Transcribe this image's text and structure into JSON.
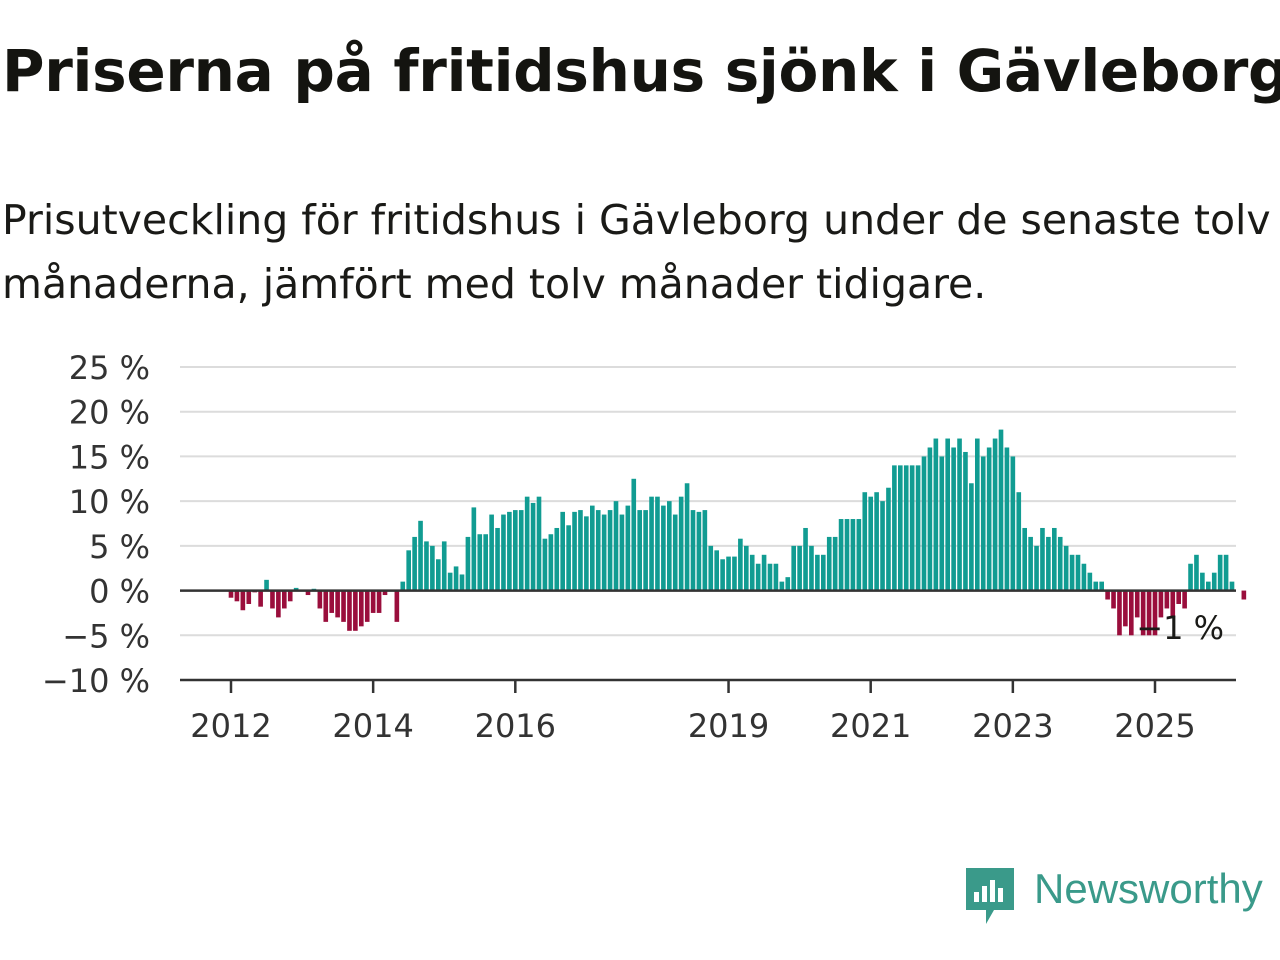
{
  "header": {
    "title": "Priserna på fritidshus sjönk i Gävleborg",
    "subtitle": "Prisutveckling för fritidshus i Gävleborg under de senaste tolv månaderna, jämfört med tolv månader tidigare."
  },
  "brand": {
    "name": "Newsworthy",
    "color": "#3a9a8a",
    "icon": "newsworthy-logo-icon"
  },
  "chart_data": {
    "type": "bar",
    "x_start": "2011-01",
    "period": "monthly",
    "ylim": [
      -10,
      25
    ],
    "yticks": [
      25,
      20,
      15,
      10,
      5,
      0,
      -5,
      -10
    ],
    "ytick_labels": [
      "25 %",
      "20 %",
      "15 %",
      "10 %",
      "5 %",
      "0 %",
      "−5 %",
      "−10 %"
    ],
    "xticks": [
      "2012",
      "2014",
      "2016",
      "2019",
      "2021",
      "2023",
      "2025"
    ],
    "grid": true,
    "colors": {
      "positive": "#119c92",
      "negative": "#9a0e3c"
    },
    "last_value_label": "−1 %",
    "values": [
      0,
      0,
      0,
      0,
      0,
      0,
      0,
      0,
      0,
      0,
      0,
      0,
      -0.8,
      -1.2,
      -2.2,
      -1.5,
      -0.2,
      -1.8,
      1.2,
      -2.0,
      -3.0,
      -2.0,
      -1.2,
      0.3,
      0,
      -0.5,
      0.2,
      -2.0,
      -3.5,
      -2.5,
      -3.0,
      -3.5,
      -4.5,
      -4.5,
      -4.0,
      -3.5,
      -2.5,
      -2.5,
      -0.5,
      0,
      -3.5,
      1.0,
      4.5,
      6.0,
      7.8,
      5.5,
      5.0,
      3.5,
      5.5,
      2.0,
      2.7,
      1.8,
      6.0,
      9.3,
      6.3,
      6.3,
      8.5,
      7.0,
      8.5,
      8.8,
      9.0,
      9.0,
      10.5,
      9.8,
      10.5,
      5.8,
      6.3,
      7.0,
      8.8,
      7.3,
      8.8,
      9.0,
      8.3,
      9.5,
      9.0,
      8.5,
      9.0,
      10.0,
      8.5,
      9.5,
      12.5,
      9.0,
      9.0,
      10.5,
      10.5,
      9.5,
      10.0,
      8.5,
      10.5,
      12.0,
      9.0,
      8.8,
      9.0,
      5.0,
      4.5,
      3.5,
      3.8,
      3.8,
      5.8,
      5.0,
      4.0,
      3.0,
      4.0,
      3.0,
      3.0,
      1.0,
      1.5,
      5.0,
      5.0,
      7.0,
      5.0,
      4.0,
      4.0,
      6.0,
      6.0,
      8.0,
      8.0,
      8.0,
      8.0,
      11.0,
      10.5,
      11.0,
      10.0,
      11.5,
      14.0,
      14.0,
      14.0,
      14.0,
      14.0,
      15.0,
      16.0,
      17.0,
      15.0,
      17.0,
      16.0,
      17.0,
      15.5,
      12.0,
      17.0,
      15.0,
      16.0,
      17.0,
      18.0,
      16.0,
      15.0,
      11.0,
      7.0,
      6.0,
      5.0,
      7.0,
      6.0,
      7.0,
      6.0,
      5.0,
      4.0,
      4.0,
      3.0,
      2.0,
      1.0,
      1.0,
      -1.0,
      -2.0,
      -5.0,
      -4.0,
      -5.0,
      -3.0,
      -5.0,
      -5.0,
      -5.0,
      -3.0,
      -2.0,
      -3.0,
      -1.5,
      -2.0,
      3.0,
      4.0,
      2.0,
      1.0,
      2.0,
      4.0,
      4.0,
      1.0,
      0,
      -1.0
    ]
  }
}
